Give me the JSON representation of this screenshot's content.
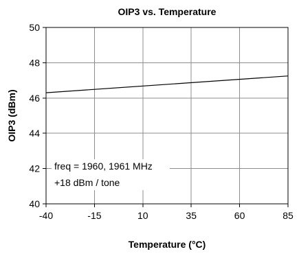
{
  "chart_data": {
    "type": "line",
    "title": "OIP3 vs. Temperature",
    "xlabel": "Temperature (°C)",
    "ylabel": "OIP3 (dBm)",
    "x_ticks": [
      -40,
      -15,
      10,
      35,
      60,
      85
    ],
    "y_ticks": [
      40,
      42,
      44,
      46,
      48,
      50
    ],
    "xlim": [
      -40,
      85
    ],
    "ylim": [
      40,
      50
    ],
    "grid": true,
    "series": [
      {
        "x": [
          -40,
          85
        ],
        "y": [
          46.3,
          47.25
        ],
        "color": "#000000"
      }
    ],
    "annotations": [
      "freq = 1960, 1961 MHz",
      "+18 dBm / tone"
    ]
  }
}
